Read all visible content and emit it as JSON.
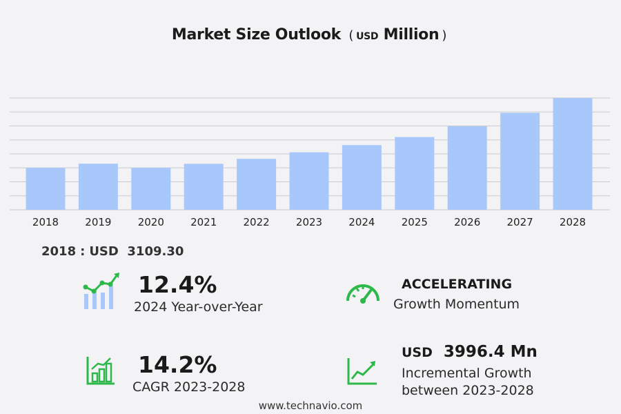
{
  "header": {
    "title_main": "Market Size Outlook",
    "title_open": "(",
    "title_unit_small": "USD",
    "title_unit_big": "Million",
    "title_close": ")"
  },
  "chart_data": {
    "type": "bar",
    "title": "Market Size Outlook ( USD Million )",
    "categories": [
      "2018",
      "2019",
      "2020",
      "2021",
      "2022",
      "2023",
      "2024",
      "2025",
      "2026",
      "2027",
      "2028"
    ],
    "values": [
      3109.3,
      3420,
      3110,
      3410,
      3780,
      4270,
      4800,
      5400,
      6200,
      7200,
      8300
    ],
    "ylim": [
      0,
      8300
    ],
    "grid": true,
    "bar_color": "#a8c8fb"
  },
  "base_year": {
    "year": "2018",
    "sep": ":",
    "currency": "USD",
    "value": "3109.30"
  },
  "stats": {
    "yoy": {
      "value": "12.4%",
      "label": "2024 Year-over-Year",
      "icon": "growth-bars-icon"
    },
    "momentum": {
      "value": "ACCELERATING",
      "label": "Growth Momentum",
      "icon": "speedometer-icon"
    },
    "cagr": {
      "value": "14.2%",
      "label": "CAGR 2023-2028",
      "icon": "bar-chart-icon"
    },
    "incremental": {
      "value_prefix": "USD",
      "value": "3996.4 Mn",
      "label_line1": "Incremental Growth",
      "label_line2": "between 2023-2028",
      "icon": "line-chart-icon"
    }
  },
  "colors": {
    "accent_green": "#2db84a",
    "bar": "#a8c8fb",
    "grid": "#c9c9cf"
  },
  "footer": {
    "site": "www.technavio.com"
  }
}
